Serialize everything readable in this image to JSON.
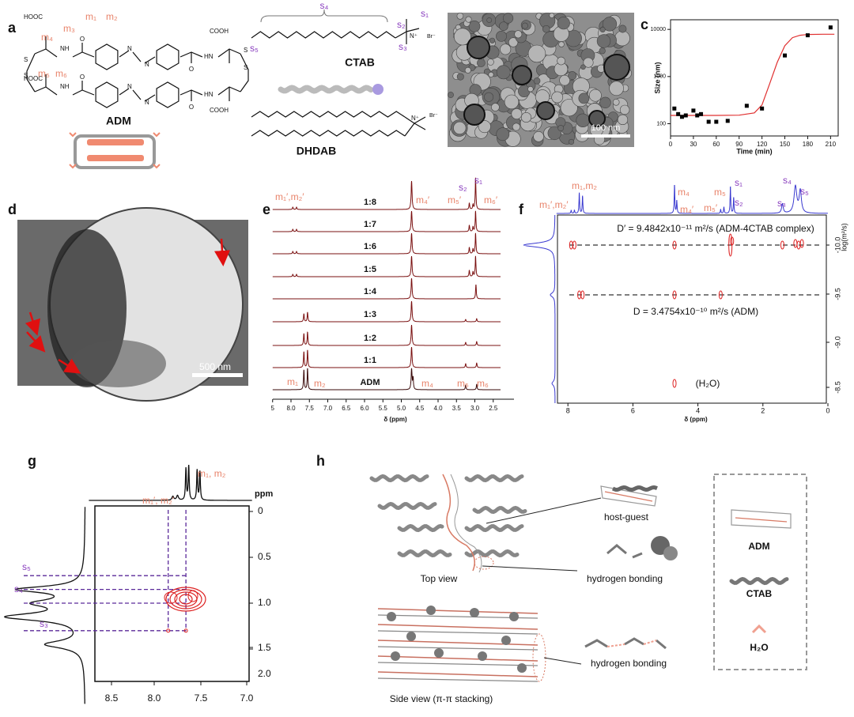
{
  "panels": {
    "a": {
      "label": "a",
      "groups": [
        "HOOC",
        "COOH",
        "HOOC",
        "COOH"
      ],
      "amides": [
        "NH",
        "HN",
        "NH",
        "HN"
      ],
      "oxygens": [
        "O",
        "O",
        "O",
        "O"
      ],
      "sulfurs": [
        "S",
        "S",
        "S",
        "S"
      ],
      "azo": [
        "N",
        "N",
        "N",
        "N"
      ],
      "protons": [
        "m₁",
        "m₂",
        "m₃",
        "m₄",
        "m₅",
        "m₆"
      ],
      "adm": "ADM",
      "ctab": "CTAB",
      "dhdab": "DHDAB",
      "ctab_protons": [
        "s₁",
        "s₂",
        "s₃",
        "s₄",
        "s₅"
      ],
      "ammonium": [
        "N⁺",
        "N⁺"
      ],
      "bromide": [
        "Br⁻",
        "Br⁻"
      ]
    },
    "b": {
      "label": "b",
      "scale": "100 nm"
    },
    "c": {
      "label": "c"
    },
    "d": {
      "label": "d",
      "scale": "500 nm"
    },
    "e": {
      "label": "e",
      "ratios": [
        "1:8",
        "1:7",
        "1:6",
        "1:5",
        "1:4",
        "1:3",
        "1:2",
        "1:1",
        "ADM"
      ],
      "complex_peaks": [
        "m₁′,m₂′",
        "m₄′",
        "m₅′",
        "s₂",
        "s₁",
        "m₆′"
      ],
      "free_peaks": [
        "m₁",
        "m₂",
        "m₄",
        "m₅",
        "m₆"
      ],
      "xticks": [
        "5",
        "8.0",
        "7.5",
        "7.0",
        "6.5",
        "6.0",
        "5.5",
        "5.0",
        "4.5",
        "4.0",
        "3.5",
        "3.0",
        "2.5"
      ],
      "xlabel": "δ (ppm)"
    },
    "f": {
      "label": "f",
      "peaks": [
        "m₁′,m₂′",
        "m₁,m₂",
        "m₄",
        "m₄′",
        "m₅",
        "m₅′",
        "s₁",
        "s₂",
        "s₃",
        "s₄",
        "s₅"
      ],
      "d_complex": "D′ = 9.4842x10⁻¹¹ m²/s (ADM-4CTAB complex)",
      "d_adm": "D = 3.4754x10⁻¹⁰ m²/s (ADM)",
      "water": "(H₂O)",
      "xticks": [
        "8",
        "6",
        "4",
        "2",
        "0"
      ],
      "xlabel": "δ (ppm)",
      "yticks": [
        "-10.0",
        "-9.5",
        "-9.0",
        "-8.5"
      ],
      "ylabel": "log(m²/s)"
    },
    "g": {
      "label": "g",
      "top_peaks": [
        "m₁, m₂",
        "m₁′, m₂′"
      ],
      "unit": "ppm",
      "side_peaks": [
        "s₅",
        "s₄",
        "s₃"
      ],
      "yticks": [
        "0",
        "0.5",
        "1.0",
        "1.5",
        "2.0"
      ],
      "xticks": [
        "8.5",
        "8.0",
        "7.5",
        "7.0"
      ]
    },
    "h": {
      "label": "h",
      "captions": [
        "host-guest",
        "hydrogen bonding",
        "hydrogen bonding"
      ],
      "views": [
        "Top view",
        "Side view (π-π stacking)"
      ],
      "legend": [
        "ADM",
        "CTAB",
        "H₂O"
      ]
    }
  },
  "chart_data": {
    "type": "scatter",
    "xlabel": "Time (min)",
    "ylabel": "Size (nm)",
    "x": [
      5,
      10,
      15,
      20,
      30,
      35,
      40,
      50,
      60,
      75,
      100,
      120,
      150,
      180,
      210
    ],
    "values": [
      210,
      160,
      140,
      150,
      190,
      150,
      160,
      110,
      110,
      115,
      240,
      210,
      2800,
      7500,
      11000
    ],
    "color": "#000000",
    "fit": {
      "color": "#e03030",
      "x": [
        0,
        30,
        60,
        90,
        110,
        120,
        130,
        140,
        150,
        160,
        170,
        180,
        200,
        215
      ],
      "values": [
        150,
        150,
        150,
        152,
        170,
        250,
        700,
        2000,
        4500,
        6700,
        7500,
        7800,
        7900,
        7900
      ]
    },
    "xlim": [
      0,
      220
    ],
    "ylim": [
      55,
      16000
    ],
    "log": true,
    "xticks": [
      0,
      30,
      60,
      90,
      120,
      150,
      180,
      210
    ],
    "yticks": [
      100,
      1000,
      10000
    ]
  }
}
